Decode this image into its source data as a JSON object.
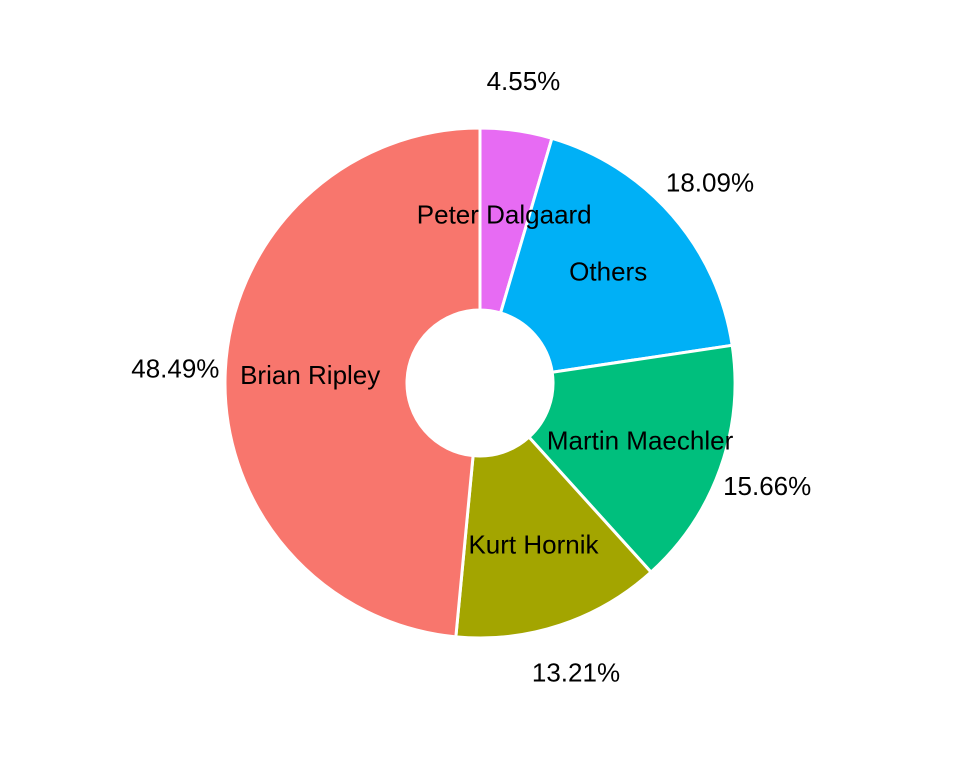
{
  "chart_data": {
    "type": "pie",
    "donut": true,
    "categories": [
      "Peter Dalgaard",
      "Others",
      "Martin Maechler",
      "Kurt Hornik",
      "Brian Ripley"
    ],
    "values": [
      4.55,
      18.09,
      15.66,
      13.21,
      48.49
    ],
    "value_labels": [
      "4.55%",
      "18.09%",
      "15.66%",
      "13.21%",
      "48.49%"
    ],
    "colors": [
      "#E76BF3",
      "#00B0F6",
      "#00BF7D",
      "#A3A500",
      "#F8766D"
    ],
    "start": "12 o'clock",
    "direction": "clockwise",
    "legend": "none",
    "title": ""
  }
}
